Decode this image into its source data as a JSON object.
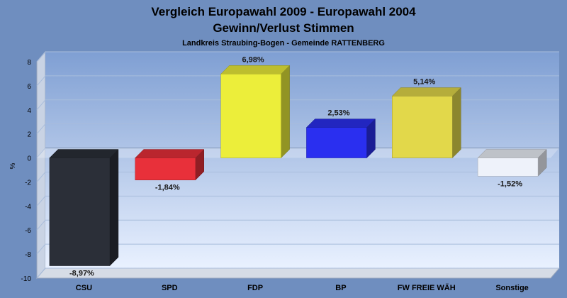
{
  "chart_data": {
    "type": "bar",
    "title": "Vergleich Europawahl 2009 - Europawahl 2004",
    "subtitle": "Gewinn/Verlust Stimmen",
    "caption": "Landkreis Straubing-Bogen - Gemeinde RATTENBERG",
    "ylabel": "%",
    "xlabel": "",
    "ylim": [
      -10,
      8
    ],
    "yticks": [
      8,
      6,
      4,
      2,
      0,
      -2,
      -4,
      -6,
      -8,
      -10
    ],
    "grid": true,
    "categories": [
      "CSU",
      "SPD",
      "FDP",
      "BP",
      "FW FREIE WÄH",
      "Sonstige"
    ],
    "values": [
      -8.97,
      -1.84,
      6.98,
      2.53,
      5.14,
      -1.52
    ],
    "value_labels": [
      "-8,97%",
      "-1,84%",
      "6,98%",
      "2,53%",
      "5,14%",
      "-1,52%"
    ],
    "colors": [
      "#2b2f38",
      "#e8303a",
      "#ecee3a",
      "#2a2ff0",
      "#e2d84a",
      "#eef2fa"
    ]
  }
}
